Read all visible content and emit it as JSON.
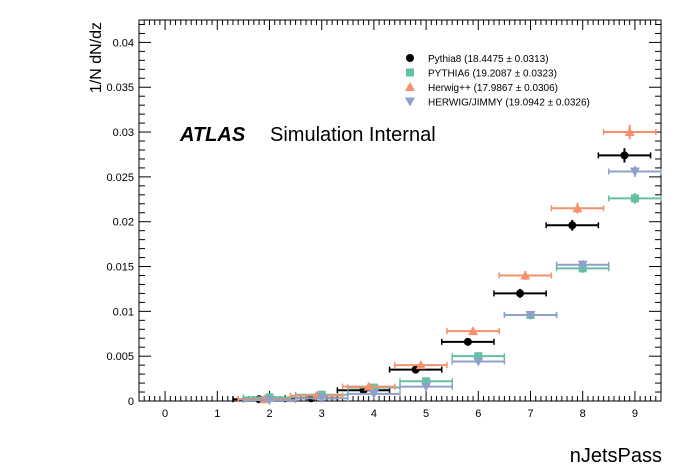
{
  "chart_data": {
    "type": "scatter",
    "xlabel": "nJetsPass",
    "ylabel": "1/N dN/dz",
    "xlim": [
      -0.5,
      9.5
    ],
    "ylim": [
      0,
      0.0425
    ],
    "x_ticks": [
      "0",
      "1",
      "2",
      "3",
      "4",
      "5",
      "6",
      "7",
      "8",
      "9"
    ],
    "y_ticks": [
      "0",
      "0.005",
      "0.01",
      "0.015",
      "0.02",
      "0.025",
      "0.03",
      "0.035",
      "0.04"
    ],
    "legend_position": "top-right",
    "grid": false,
    "atlas_label": "ATLAS",
    "atlas_sublabel": "Simulation Internal",
    "x": [
      2,
      3,
      4,
      5,
      6,
      7,
      8,
      9
    ],
    "series": [
      {
        "name": "Pythia8 (18.4475 ± 0.0313)",
        "color": "#000000",
        "marker": "circle",
        "offset": -0.2,
        "values": [
          0.0002,
          0.0003,
          0.0012,
          0.0035,
          0.0066,
          0.012,
          0.0196,
          0.0274
        ],
        "errors": [
          0.0001,
          0.0001,
          0.0002,
          0.0003,
          0.0004,
          0.0005,
          0.0006,
          0.0008
        ]
      },
      {
        "name": "PYTHIA6 (19.2087 ± 0.0323)",
        "color": "#66bfa5",
        "marker": "square",
        "offset": 0.0,
        "values": [
          0.0004,
          0.0007,
          0.0015,
          0.0022,
          0.005,
          0.0096,
          0.0148,
          0.0226
        ],
        "errors": [
          0.0001,
          0.0001,
          0.0002,
          0.0003,
          0.0003,
          0.0004,
          0.0005,
          0.0006
        ]
      },
      {
        "name": "Herwig++ (17.9867 ± 0.0306)",
        "color": "#f5916c",
        "marker": "triangle-up",
        "offset": -0.1,
        "values": [
          0.0002,
          0.0006,
          0.0016,
          0.004,
          0.0078,
          0.014,
          0.0215,
          0.03
        ],
        "errors": [
          0.0001,
          0.0001,
          0.0002,
          0.0003,
          0.0004,
          0.0005,
          0.0006,
          0.0008
        ]
      },
      {
        "name": "HERWIG/JIMMY (19.0942 ± 0.0326)",
        "color": "#8fa0c9",
        "marker": "triangle-down",
        "offset": 0.0,
        "values": [
          0.0001,
          0.0003,
          0.0008,
          0.0016,
          0.0044,
          0.0096,
          0.0152,
          0.0256
        ],
        "errors": [
          0.0001,
          0.0001,
          0.0001,
          0.0002,
          0.0003,
          0.0004,
          0.0005,
          0.0006
        ]
      }
    ]
  }
}
